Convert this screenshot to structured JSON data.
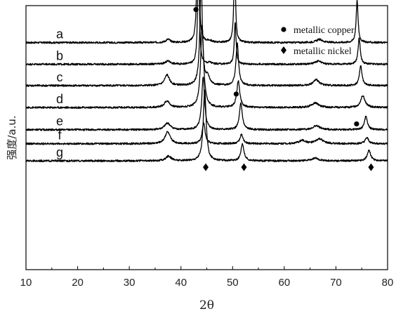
{
  "chart_data": {
    "type": "line",
    "xlabel": "2θ",
    "ylabel": "强度/a.u.",
    "xlim": [
      10,
      80
    ],
    "x_ticks": [
      "10",
      "20",
      "30",
      "40",
      "50",
      "60",
      "70",
      "80"
    ],
    "grid": false,
    "legend": {
      "placement": "top-right",
      "entries": [
        {
          "label": "metallic copper",
          "marker": "circle"
        },
        {
          "label": "metallic nickel",
          "marker": "diamond"
        }
      ]
    },
    "series": [
      {
        "name": "a",
        "baseline": 0.86,
        "noise": 0.0035,
        "peaks": [
          [
            43.3,
            0.15,
            0.98
          ],
          [
            50.4,
            0.18,
            0.33
          ],
          [
            74.1,
            0.22,
            0.16
          ],
          [
            37.5,
            0.5,
            0.012
          ],
          [
            45.5,
            0.5,
            0.006
          ],
          [
            66.8,
            0.7,
            0.012
          ]
        ]
      },
      {
        "name": "b",
        "baseline": 0.778,
        "noise": 0.0035,
        "peaks": [
          [
            43.4,
            0.17,
            0.5
          ],
          [
            50.5,
            0.2,
            0.16
          ],
          [
            74.5,
            0.25,
            0.1
          ],
          [
            37.5,
            0.6,
            0.012
          ],
          [
            45.6,
            0.4,
            0.006
          ],
          [
            66.6,
            0.7,
            0.012
          ]
        ]
      },
      {
        "name": "c",
        "baseline": 0.697,
        "noise": 0.0035,
        "peaks": [
          [
            43.9,
            0.28,
            0.4
          ],
          [
            50.9,
            0.3,
            0.16
          ],
          [
            74.8,
            0.3,
            0.075
          ],
          [
            37.3,
            0.55,
            0.04
          ],
          [
            45.2,
            0.45,
            0.028
          ],
          [
            66.2,
            0.7,
            0.022
          ]
        ]
      },
      {
        "name": "d",
        "baseline": 0.614,
        "noise": 0.0035,
        "peaks": [
          [
            44.1,
            0.35,
            0.31
          ],
          [
            51.1,
            0.35,
            0.1
          ],
          [
            75.2,
            0.5,
            0.045
          ],
          [
            37.3,
            0.6,
            0.025
          ],
          [
            66.0,
            0.8,
            0.018
          ]
        ]
      },
      {
        "name": "e",
        "baseline": 0.53,
        "noise": 0.0035,
        "peaks": [
          [
            44.3,
            0.33,
            0.2
          ],
          [
            51.6,
            0.33,
            0.1
          ],
          [
            75.8,
            0.35,
            0.05
          ],
          [
            37.4,
            0.65,
            0.025
          ],
          [
            66.2,
            0.8,
            0.015
          ]
        ]
      },
      {
        "name": "f",
        "baseline": 0.477,
        "noise": 0.0035,
        "peaks": [
          [
            44.4,
            0.33,
            0.08
          ],
          [
            51.7,
            0.35,
            0.035
          ],
          [
            76.0,
            0.4,
            0.022
          ],
          [
            37.4,
            0.6,
            0.045
          ],
          [
            63.5,
            0.8,
            0.012
          ],
          [
            66.8,
            0.8,
            0.018
          ]
        ]
      },
      {
        "name": "g",
        "baseline": 0.412,
        "noise": 0.0035,
        "peaks": [
          [
            44.6,
            0.33,
            0.27
          ],
          [
            51.9,
            0.35,
            0.065
          ],
          [
            76.4,
            0.4,
            0.04
          ],
          [
            37.6,
            0.6,
            0.018
          ],
          [
            66.0,
            0.8,
            0.01
          ]
        ]
      }
    ],
    "markers": {
      "copper": [
        {
          "x": 42.9,
          "y": 0.985
        },
        {
          "x": 50.7,
          "y": 0.665
        },
        {
          "x": 74.0,
          "y": 0.552
        }
      ],
      "nickel": [
        {
          "x": 44.8,
          "y": 0.388
        },
        {
          "x": 52.2,
          "y": 0.388
        },
        {
          "x": 76.8,
          "y": 0.388
        }
      ]
    },
    "line_color": "#000000"
  }
}
